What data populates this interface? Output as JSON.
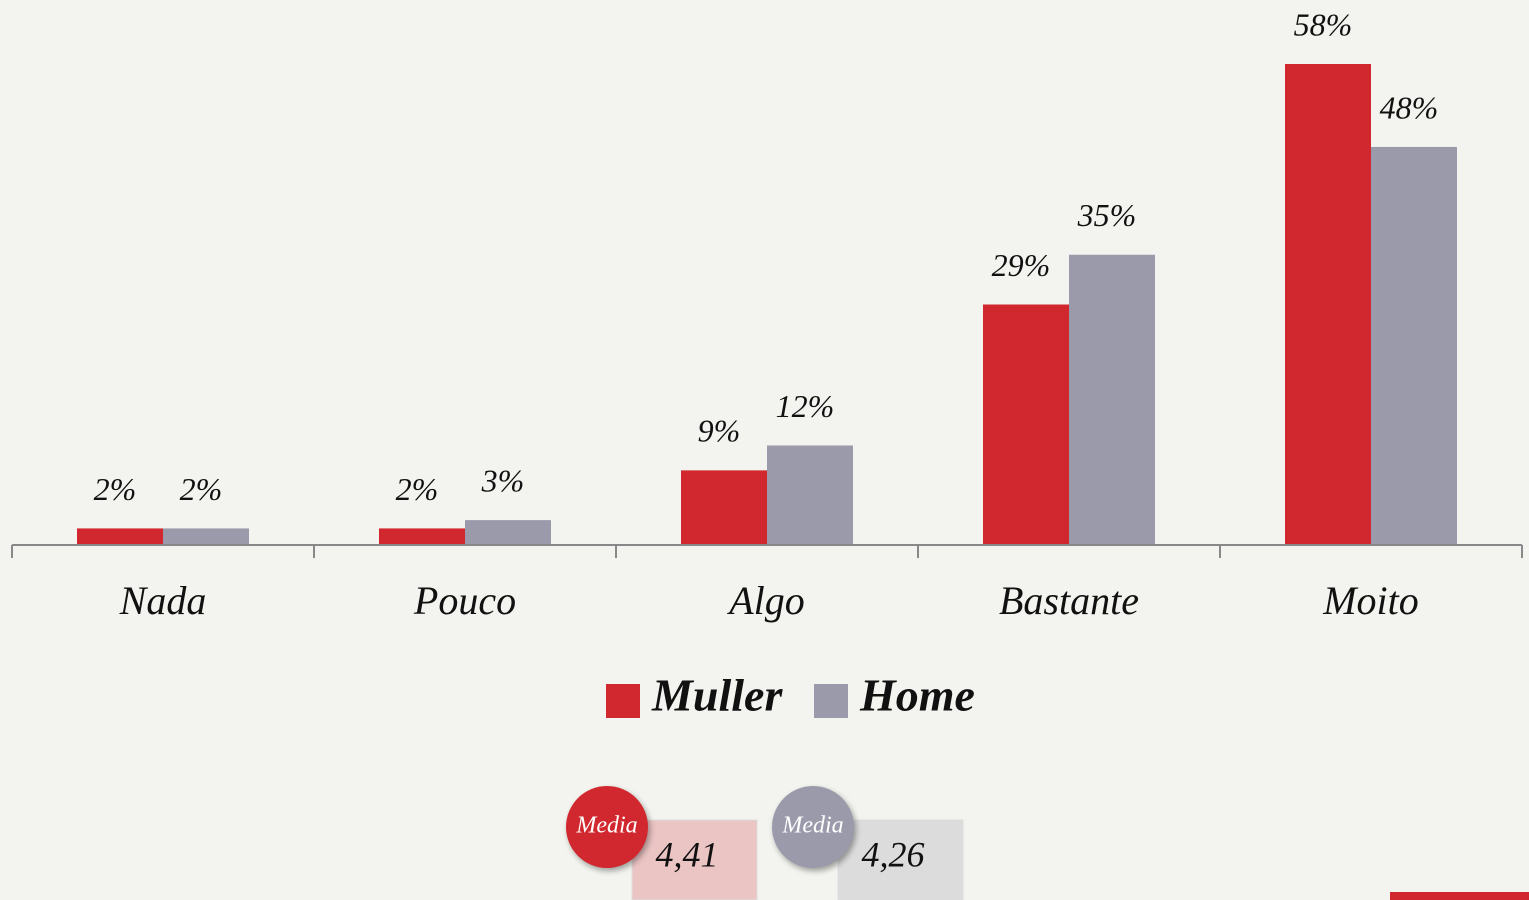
{
  "chart_data": {
    "type": "bar",
    "categories": [
      "Nada",
      "Pouco",
      "Algo",
      "Bastante",
      "Moito"
    ],
    "series": [
      {
        "name": "Muller",
        "color": "#d0282e",
        "values": [
          2,
          2,
          9,
          29,
          58
        ],
        "value_labels": [
          "2%",
          "2%",
          "9%",
          "29%",
          "58%"
        ]
      },
      {
        "name": "Home",
        "color": "#9a9aab",
        "values": [
          2,
          3,
          12,
          35,
          48
        ],
        "value_labels": [
          "2%",
          "3%",
          "12%",
          "35%",
          "48%"
        ]
      }
    ],
    "legend": "bottom"
  },
  "summary": [
    {
      "badge": "Media",
      "value": "4,41"
    },
    {
      "badge": "Media",
      "value": "4,26"
    }
  ]
}
